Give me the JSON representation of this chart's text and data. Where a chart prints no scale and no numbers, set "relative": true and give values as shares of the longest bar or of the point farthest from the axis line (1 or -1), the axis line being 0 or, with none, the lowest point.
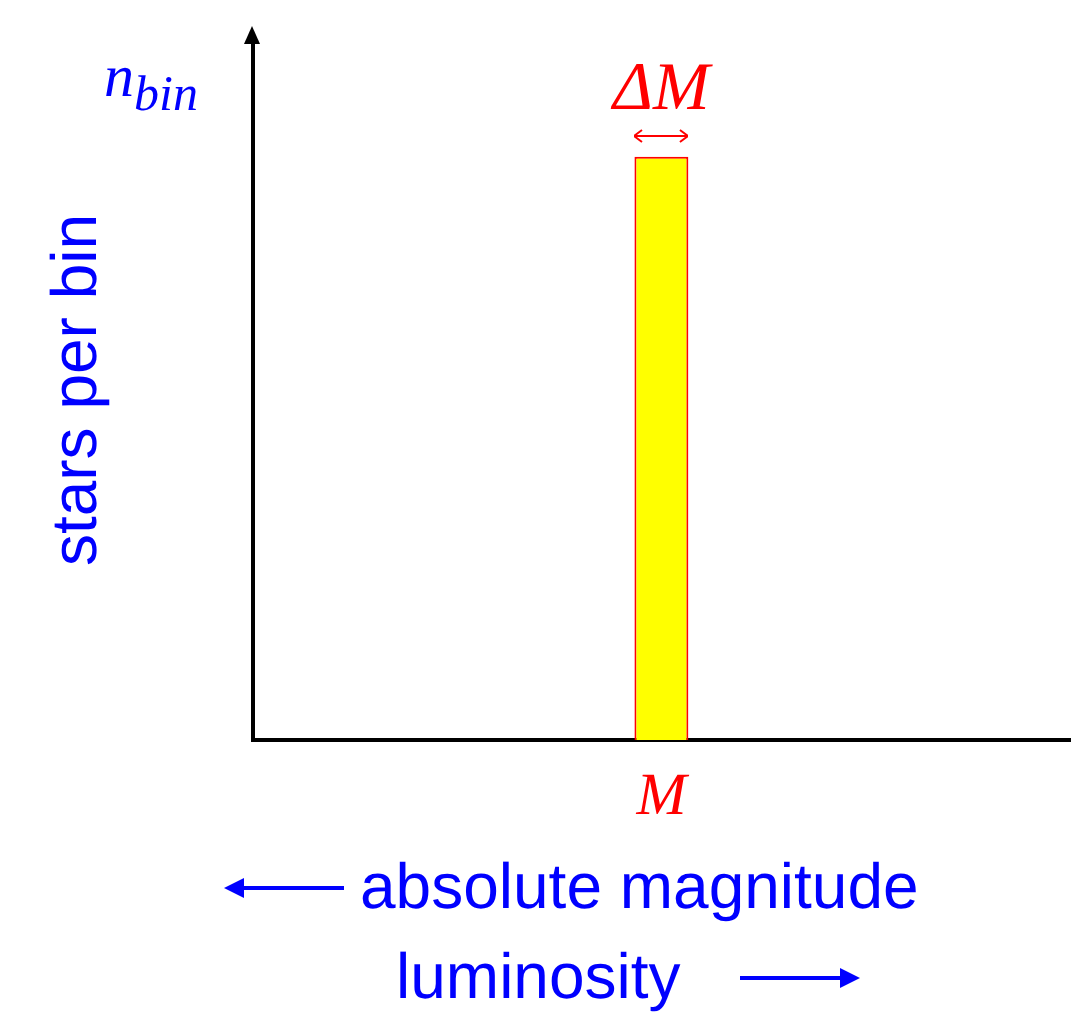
{
  "chart_data": {
    "type": "bar",
    "relative": true,
    "categories": [
      "M"
    ],
    "values": [
      1
    ],
    "color": "#ffff00",
    "ylabel": "stars per bin",
    "xlabel": "absolute magnitude",
    "annotations": [
      {
        "text": "ΔM",
        "x": "M",
        "y": 1
      },
      "n$_{bin}$",
      "luminosity"
    ]
  }
}
